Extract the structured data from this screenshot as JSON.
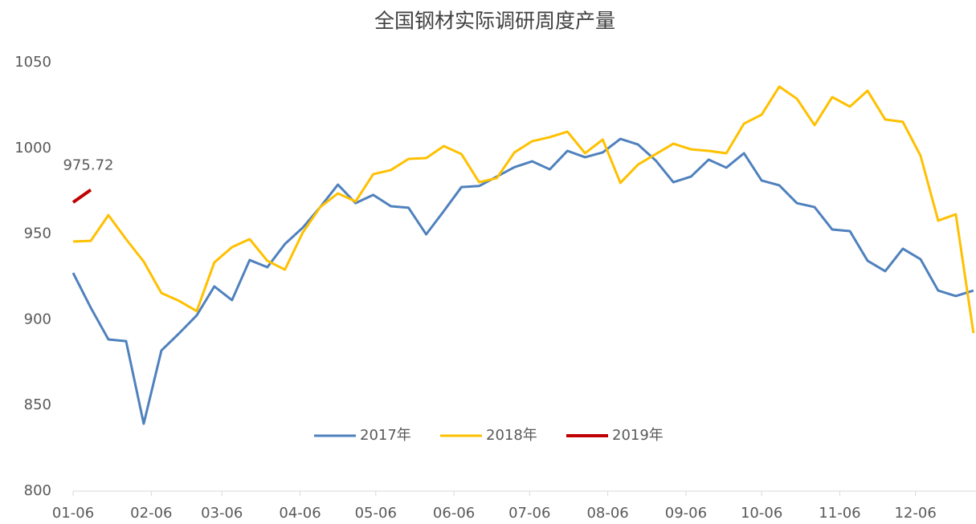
{
  "chart_data": {
    "type": "line",
    "title": "全国钢材实际调研周度产量",
    "xlim": [
      0,
      358
    ],
    "xticks": [
      {
        "value": 0,
        "label": "01-06"
      },
      {
        "value": 31,
        "label": "02-06"
      },
      {
        "value": 59,
        "label": "03-06"
      },
      {
        "value": 90,
        "label": "04-06"
      },
      {
        "value": 120,
        "label": "05-06"
      },
      {
        "value": 151,
        "label": "06-06"
      },
      {
        "value": 181,
        "label": "07-06"
      },
      {
        "value": 212,
        "label": "08-06"
      },
      {
        "value": 243,
        "label": "09-06"
      },
      {
        "value": 273,
        "label": "10-06"
      },
      {
        "value": 304,
        "label": "11-06"
      },
      {
        "value": 334,
        "label": "12-06"
      }
    ],
    "ylim": [
      800,
      1050
    ],
    "yticks": [
      800,
      850,
      900,
      950,
      1000,
      1050
    ],
    "grid": false,
    "legend": "center",
    "series": [
      {
        "name": "2017年",
        "color": "#4f81bd",
        "x": [
          0,
          7,
          14,
          21,
          28,
          35,
          42,
          49,
          56,
          63,
          70,
          77,
          84,
          91,
          98,
          105,
          112,
          119,
          126,
          133,
          140,
          147,
          154,
          161,
          168,
          175,
          182,
          189,
          196,
          203,
          210,
          217,
          224,
          231,
          238,
          245,
          252,
          259,
          266,
          273,
          280,
          287,
          294,
          301,
          308,
          315,
          322,
          329,
          336,
          343,
          350,
          357
        ],
        "values": [
          927.3,
          907,
          888.5,
          887.5,
          839.3,
          882,
          892,
          902.5,
          919.4,
          911.4,
          934.8,
          930.6,
          944.2,
          953.6,
          965.7,
          978.8,
          968,
          972.8,
          966.2,
          965.3,
          949.8,
          963.4,
          977.4,
          978,
          983.5,
          989,
          992.4,
          987.7,
          998.5,
          994.8,
          997.6,
          1005.5,
          1002.2,
          992.9,
          980.2,
          983.5,
          993.4,
          988.7,
          997.1,
          981.2,
          978.4,
          968,
          965.7,
          952.6,
          951.7,
          934.4,
          928.3,
          941.4,
          935.3,
          917,
          913.8,
          917
        ]
      },
      {
        "name": "2018年",
        "color": "#ffc000",
        "x": [
          0,
          7,
          14,
          21,
          28,
          35,
          42,
          49,
          56,
          63,
          70,
          77,
          84,
          91,
          98,
          105,
          112,
          119,
          126,
          133,
          140,
          147,
          154,
          161,
          168,
          175,
          182,
          189,
          196,
          203,
          210,
          217,
          224,
          231,
          238,
          245,
          252,
          259,
          266,
          273,
          280,
          287,
          294,
          301,
          308,
          315,
          322,
          329,
          336,
          343,
          350,
          357
        ],
        "values": [
          945.6,
          946,
          961,
          947,
          933.9,
          915.6,
          911,
          905,
          933.4,
          942.3,
          947,
          934.4,
          929.2,
          950.7,
          965.7,
          973.7,
          969,
          984.9,
          987.3,
          993.8,
          994.3,
          1001.3,
          996.6,
          980.2,
          982.6,
          997.6,
          1004.1,
          1006.5,
          1009.7,
          997.1,
          1005.1,
          979.8,
          990.5,
          996.6,
          1002.7,
          999.4,
          998.5,
          997.1,
          1014.4,
          1019.6,
          1036,
          1028.9,
          1013.5,
          1029.9,
          1024.3,
          1033.6,
          1016.8,
          1015.4,
          995.7,
          957.8,
          961.5,
          892.2
        ]
      },
      {
        "name": "2019年",
        "color": "#c00000",
        "x": [
          0,
          7
        ],
        "values": [
          968.5,
          975.72
        ],
        "value_labels": [
          null,
          "975.72"
        ]
      }
    ]
  }
}
